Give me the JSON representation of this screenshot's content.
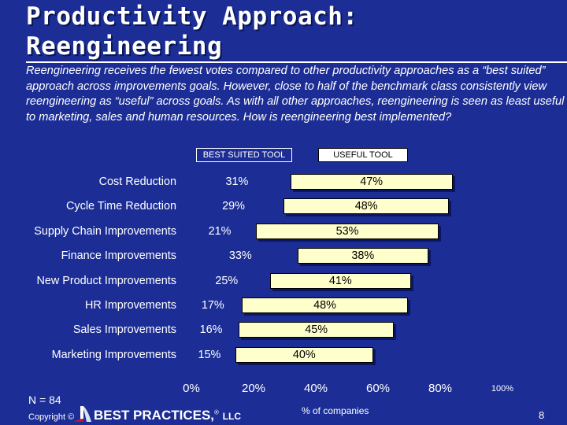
{
  "slide": {
    "title_line1": "Productivity Approach:",
    "title_line2": "Reengineering",
    "intro": "Reengineering receives the fewest votes compared to other productivity approaches as a “best suited” approach across improvements goals. However, close to half of the benchmark class consistently view reengineering as “useful” across goals. As with all other approaches, reengineering is seen as least useful to marketing, sales and human resources. How is reengineering best implemented?",
    "n_label": "N = 84",
    "copyright": "Copyright ©",
    "brand": "BEST PRACTICES,",
    "brand_reg": "®",
    "brand_suffix": "LLC",
    "page_number": "8",
    "logo_icon": "best-practices-logo-icon"
  },
  "chart_data": {
    "type": "bar",
    "orientation": "horizontal",
    "stacked": true,
    "xlabel": "% of companies",
    "xlim": [
      0,
      100
    ],
    "x_ticks": [
      "0%",
      "20%",
      "40%",
      "60%",
      "80%",
      "100%"
    ],
    "categories": [
      "Cost Reduction",
      "Cycle Time Reduction",
      "Supply Chain Improvements",
      "Finance Improvements",
      "New Product Improvements",
      "HR Improvements",
      "Sales Improvements",
      "Marketing Improvements"
    ],
    "series": [
      {
        "name": "BEST SUITED TOOL",
        "values": [
          31,
          29,
          21,
          33,
          25,
          17,
          16,
          15
        ],
        "labels": [
          "31%",
          "29%",
          "21%",
          "33%",
          "25%",
          "17%",
          "16%",
          "15%"
        ],
        "color": "#1c2e95"
      },
      {
        "name": "USEFUL TOOL",
        "values": [
          47,
          48,
          53,
          38,
          41,
          48,
          45,
          40
        ],
        "labels": [
          "47%",
          "48%",
          "53%",
          "38%",
          "41%",
          "48%",
          "45%",
          "40%"
        ],
        "color": "#ffffcc"
      }
    ],
    "legend": "top"
  }
}
